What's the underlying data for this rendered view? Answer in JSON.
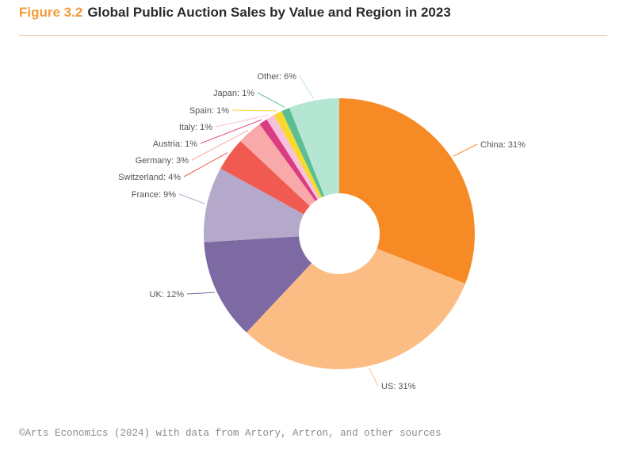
{
  "figure": {
    "number": "Figure 3.2",
    "title": "Global Public Auction Sales by Value and Region in 2023"
  },
  "source": "©Arts Economics (2024) with data from Artory, Artron, and other sources",
  "chart_data": {
    "type": "pie",
    "style": "donut",
    "title": "Global Public Auction Sales by Value and Region in 2023",
    "unit": "%",
    "slices": [
      {
        "name": "China",
        "value": 31,
        "label": "China: 31%",
        "color": "#f68b26"
      },
      {
        "name": "US",
        "value": 31,
        "label": "US: 31%",
        "color": "#fbbd83"
      },
      {
        "name": "UK",
        "value": 12,
        "label": "UK: 12%",
        "color": "#7e6aa3"
      },
      {
        "name": "France",
        "value": 9,
        "label": "France: 9%",
        "color": "#b5a9cb"
      },
      {
        "name": "Switzerland",
        "value": 4,
        "label": "Switzerland: 4%",
        "color": "#f15a50"
      },
      {
        "name": "Germany",
        "value": 3,
        "label": "Germany: 3%",
        "color": "#f9a9a9"
      },
      {
        "name": "Austria",
        "value": 1,
        "label": "Austria: 1%",
        "color": "#d93c81"
      },
      {
        "name": "Italy",
        "value": 1,
        "label": "Italy: 1%",
        "color": "#f7c1dd"
      },
      {
        "name": "Spain",
        "value": 1,
        "label": "Spain: 1%",
        "color": "#f8d92e"
      },
      {
        "name": "Japan",
        "value": 1,
        "label": "Japan: 1%",
        "color": "#5cbf93"
      },
      {
        "name": "Other",
        "value": 6,
        "label": "Other: 6%",
        "color": "#b5e6d4"
      }
    ]
  }
}
